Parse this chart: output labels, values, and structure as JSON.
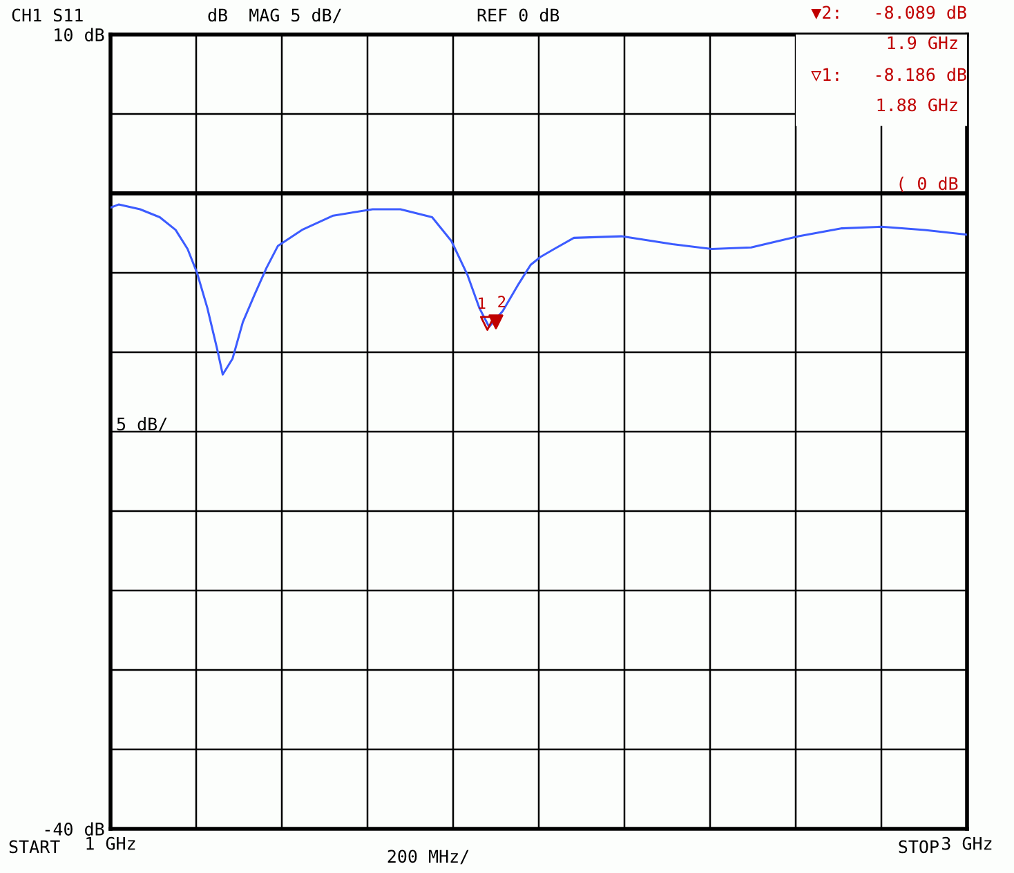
{
  "chart_data": {
    "type": "line",
    "title": "CH1 S11",
    "annotations": [
      "dB  MAG 5 dB/",
      "REF 0 dB",
      "200 MHz/",
      "▼2:   -8.089 dB",
      "1.9 GHz",
      "▽1:   -8.186 dB",
      "1.88 GHz",
      "5 dB/",
      {
        "text": "1",
        "x": 1.88,
        "y": -8.186
      },
      {
        "text": "2",
        "x": 1.9,
        "y": -8.089
      }
    ],
    "series": [
      {
        "color": "#3c5cff",
        "x": [
          1.0,
          1.019,
          1.069,
          1.115,
          1.152,
          1.18,
          1.202,
          1.226,
          1.249,
          1.262,
          1.285,
          1.309,
          1.336,
          1.364,
          1.391,
          1.447,
          1.52,
          1.612,
          1.677,
          1.751,
          1.796,
          1.833,
          1.861,
          1.884,
          1.916,
          1.953,
          1.981,
          2.004,
          2.036,
          2.082,
          2.193,
          2.312,
          2.404,
          2.496,
          2.607,
          2.708,
          2.8,
          2.901,
          3.0
        ],
        "values": [
          -0.9,
          -0.7,
          -1.0,
          -1.5,
          -2.3,
          -3.5,
          -5.0,
          -7.2,
          -9.8,
          -11.4,
          -10.4,
          -8.1,
          -6.4,
          -4.7,
          -3.3,
          -2.3,
          -1.4,
          -1.0,
          -1.0,
          -1.5,
          -3.0,
          -5.1,
          -7.2,
          -8.4,
          -7.4,
          -5.7,
          -4.5,
          -4.0,
          -3.5,
          -2.8,
          -2.7,
          -3.2,
          -3.5,
          -3.4,
          -2.7,
          -2.2,
          -2.1,
          -2.3,
          -2.6
        ]
      },
      {
        "type": "scatter",
        "marker": "triangle",
        "color": "#c00000",
        "x": [
          1.88,
          1.9
        ],
        "values": [
          -8.186,
          -8.089
        ]
      }
    ],
    "xlim": [
      1,
      3
    ],
    "xlabel": [
      "START",
      "STOP"
    ],
    "xticks": [
      {
        "value": 1.0,
        "label": "1 GHz"
      },
      {
        "value": 1.2,
        "label": null
      },
      {
        "value": 1.4,
        "label": null
      },
      {
        "value": 1.6,
        "label": null
      },
      {
        "value": 1.8,
        "label": null
      },
      {
        "value": 2.0,
        "label": null
      },
      {
        "value": 2.2,
        "label": null
      },
      {
        "value": 2.4,
        "label": null
      },
      {
        "value": 2.6,
        "label": null
      },
      {
        "value": 2.8,
        "label": null
      },
      {
        "value": 3.0,
        "label": "3 GHz"
      }
    ],
    "ylim": [
      -40,
      10
    ],
    "yticks": [
      {
        "value": 10,
        "label": "10 dB"
      },
      {
        "value": 5,
        "label": null
      },
      {
        "value": 0,
        "label": null
      },
      {
        "value": -5,
        "label": null
      },
      {
        "value": -10,
        "label": null
      },
      {
        "value": -15,
        "label": null
      },
      {
        "value": -20,
        "label": null
      },
      {
        "value": -25,
        "label": null
      },
      {
        "value": -30,
        "label": null
      },
      {
        "value": -35,
        "label": null
      },
      {
        "value": -40,
        "label": "-40 dB"
      }
    ],
    "ref_lines": [
      {
        "axis": "y",
        "value": 0,
        "label": "( 0 dB",
        "color": "#000000"
      }
    ],
    "grid": true,
    "legend": false,
    "line_style": "solid"
  }
}
